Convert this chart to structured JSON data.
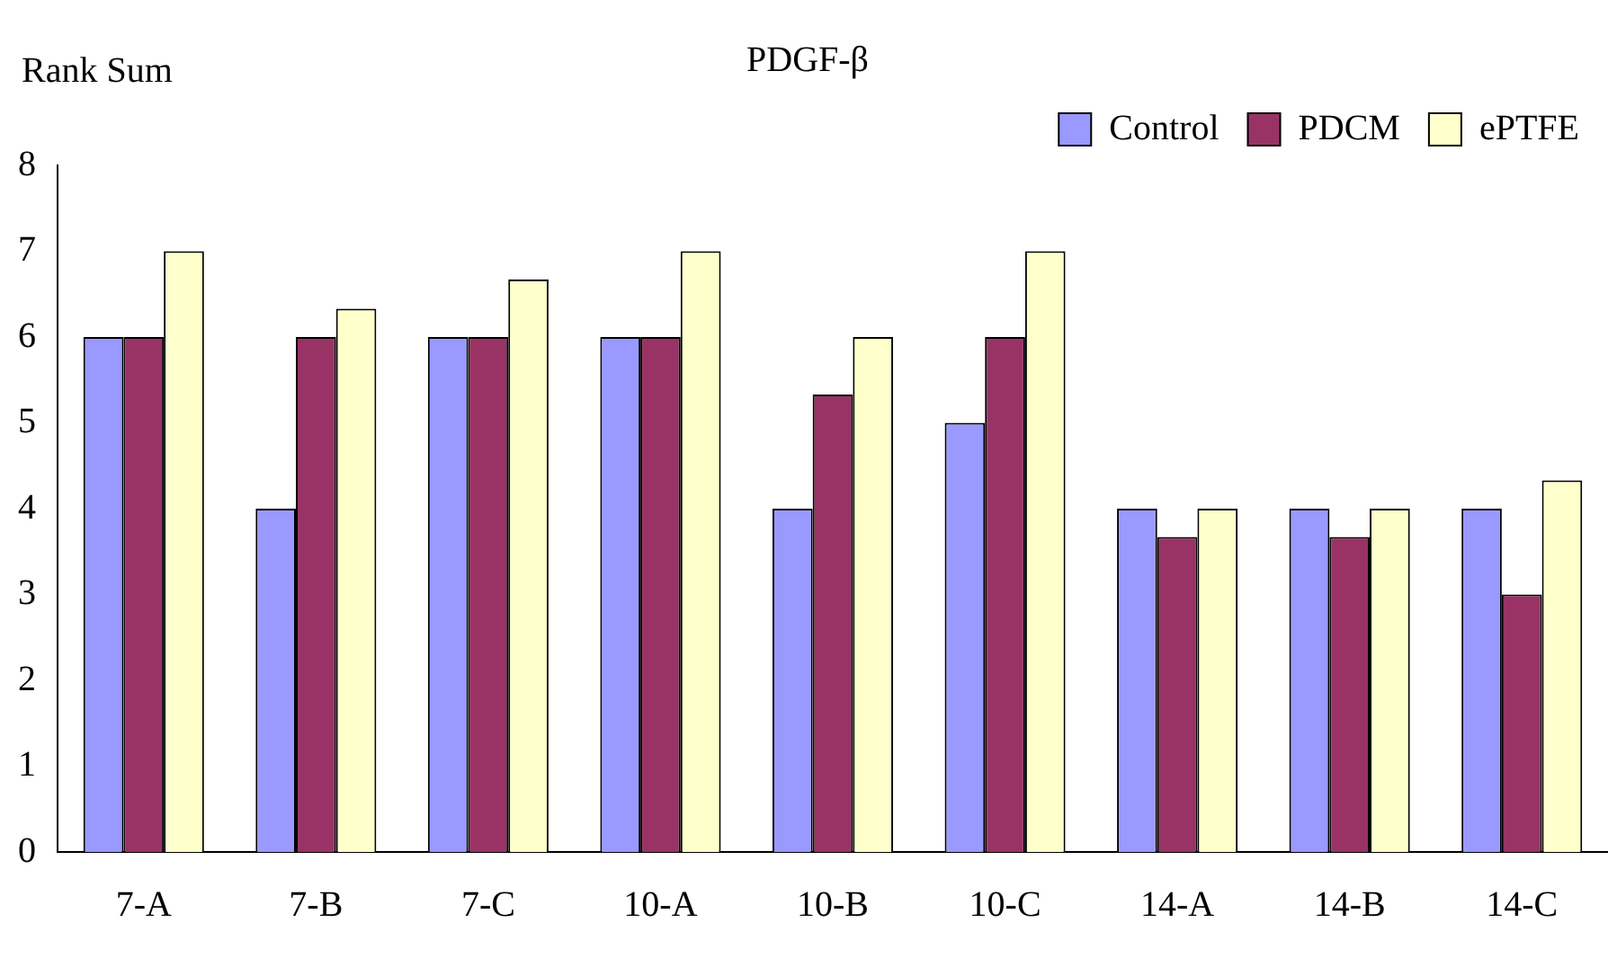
{
  "chart_data": {
    "type": "bar",
    "title": "PDGF-β",
    "ylabel": "Rank Sum",
    "categories": [
      "7-A",
      "7-B",
      "7-C",
      "10-A",
      "10-B",
      "10-C",
      "14-A",
      "14-B",
      "14-C"
    ],
    "series": [
      {
        "name": "Control",
        "color": "#9999ff",
        "values": [
          6,
          4,
          6,
          6,
          4,
          5,
          4,
          4,
          4
        ]
      },
      {
        "name": "PDCM",
        "color": "#993366",
        "values": [
          6,
          6,
          6,
          6,
          5.33,
          6,
          3.67,
          3.67,
          3
        ]
      },
      {
        "name": "ePTFE",
        "color": "#ffffcc",
        "values": [
          7,
          6.33,
          6.67,
          7,
          6,
          7,
          4,
          4,
          4.33
        ]
      }
    ],
    "ylim": [
      0,
      8
    ],
    "yticks": [
      0,
      1,
      2,
      3,
      4,
      5,
      6,
      7,
      8
    ],
    "grid": false,
    "legend": "top right"
  }
}
